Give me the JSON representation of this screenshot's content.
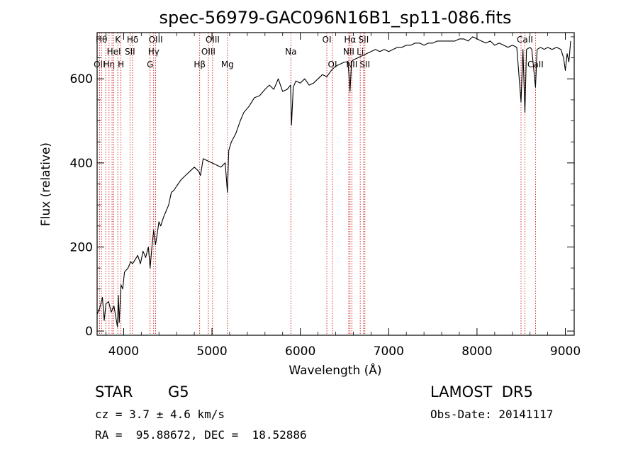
{
  "chart_data": {
    "type": "line",
    "title": "spec-56979-GAC096N16B1_sp11-086.fits",
    "xlabel": "Wavelength (Å)",
    "ylabel": "Flux (relative)",
    "xlim": [
      3700,
      9100
    ],
    "ylim": [
      -10,
      710
    ],
    "xticks": [
      4000,
      5000,
      6000,
      7000,
      8000,
      9000
    ],
    "yticks": [
      0,
      200,
      400,
      600
    ],
    "grid": false,
    "series": [
      {
        "x": [
          3700,
          3730,
          3760,
          3780,
          3800,
          3830,
          3860,
          3890,
          3910,
          3930,
          3940,
          3950,
          3970,
          3990,
          4010,
          4050,
          4080,
          4100,
          4130,
          4160,
          4190,
          4220,
          4250,
          4280,
          4300,
          4320,
          4340,
          4360,
          4380,
          4400,
          4420,
          4450,
          4480,
          4510,
          4540,
          4570,
          4600,
          4650,
          4700,
          4750,
          4800,
          4850,
          4870,
          4900,
          4950,
          5000,
          5050,
          5100,
          5150,
          5175,
          5190,
          5220,
          5270,
          5320,
          5360,
          5420,
          5480,
          5540,
          5600,
          5650,
          5700,
          5750,
          5800,
          5850,
          5890,
          5900,
          5920,
          5950,
          6000,
          6050,
          6100,
          6150,
          6200,
          6250,
          6300,
          6350,
          6400,
          6450,
          6500,
          6540,
          6563,
          6580,
          6600,
          6650,
          6700,
          6750,
          6800,
          6850,
          6900,
          6950,
          7000,
          7050,
          7100,
          7150,
          7200,
          7250,
          7300,
          7350,
          7400,
          7450,
          7500,
          7550,
          7600,
          7650,
          7700,
          7750,
          7800,
          7850,
          7900,
          7950,
          8000,
          8050,
          8100,
          8150,
          8200,
          8250,
          8300,
          8350,
          8400,
          8450,
          8498,
          8520,
          8542,
          8560,
          8600,
          8620,
          8662,
          8680,
          8720,
          8760,
          8800,
          8850,
          8900,
          8950,
          8980,
          9000,
          9020,
          9040,
          9060
        ],
        "y": [
          40,
          55,
          80,
          25,
          65,
          70,
          45,
          60,
          35,
          10,
          85,
          20,
          110,
          100,
          140,
          150,
          165,
          160,
          170,
          180,
          160,
          190,
          175,
          200,
          150,
          200,
          240,
          205,
          230,
          260,
          250,
          270,
          285,
          300,
          330,
          335,
          345,
          360,
          370,
          380,
          390,
          380,
          370,
          410,
          405,
          400,
          395,
          390,
          400,
          330,
          430,
          450,
          470,
          500,
          520,
          535,
          555,
          560,
          575,
          585,
          575,
          600,
          570,
          575,
          585,
          490,
          580,
          595,
          590,
          600,
          585,
          590,
          600,
          610,
          605,
          620,
          630,
          635,
          640,
          640,
          570,
          640,
          645,
          650,
          655,
          660,
          665,
          670,
          665,
          670,
          665,
          670,
          675,
          675,
          680,
          680,
          685,
          685,
          680,
          685,
          685,
          690,
          690,
          690,
          690,
          690,
          695,
          695,
          690,
          700,
          695,
          690,
          685,
          690,
          680,
          685,
          680,
          675,
          680,
          675,
          545,
          670,
          520,
          670,
          675,
          670,
          580,
          670,
          675,
          670,
          675,
          670,
          675,
          670,
          650,
          620,
          660,
          640,
          690
        ]
      }
    ],
    "lines": [
      {
        "wl": 3727,
        "label": "OII",
        "row": 2
      },
      {
        "wl": 3750,
        "label": "Hθ",
        "row": 0
      },
      {
        "wl": 3798,
        "label": "",
        "row": 0
      },
      {
        "wl": 3835,
        "label": "Hη",
        "row": 2
      },
      {
        "wl": 3869,
        "label": "",
        "row": 0
      },
      {
        "wl": 3889,
        "label": "HeI",
        "row": 1
      },
      {
        "wl": 3934,
        "label": "K",
        "row": 0
      },
      {
        "wl": 3970,
        "label": "H",
        "row": 2
      },
      {
        "wl": 4072,
        "label": "SII",
        "row": 1
      },
      {
        "wl": 4102,
        "label": "Hδ",
        "row": 0
      },
      {
        "wl": 4300,
        "label": "G",
        "row": 2
      },
      {
        "wl": 4340,
        "label": "Hγ",
        "row": 1
      },
      {
        "wl": 4363,
        "label": "OIII",
        "row": 0
      },
      {
        "wl": 4861,
        "label": "Hβ",
        "row": 2
      },
      {
        "wl": 4959,
        "label": "OIII",
        "row": 1
      },
      {
        "wl": 5007,
        "label": "OIII",
        "row": 0
      },
      {
        "wl": 5175,
        "label": "Mg",
        "row": 2
      },
      {
        "wl": 5893,
        "label": "Na",
        "row": 1
      },
      {
        "wl": 6300,
        "label": "OI",
        "row": 0
      },
      {
        "wl": 6364,
        "label": "OI",
        "row": 2
      },
      {
        "wl": 6548,
        "label": "NII",
        "row": 1
      },
      {
        "wl": 6563,
        "label": "Hα",
        "row": 0
      },
      {
        "wl": 6583,
        "label": "NII",
        "row": 2
      },
      {
        "wl": 6678,
        "label": "Li",
        "row": 1
      },
      {
        "wl": 6716,
        "label": "SII",
        "row": 0
      },
      {
        "wl": 6731,
        "label": "SII",
        "row": 2
      },
      {
        "wl": 8498,
        "label": "",
        "row": 0
      },
      {
        "wl": 8542,
        "label": "CaII",
        "row": 0
      },
      {
        "wl": 8662,
        "label": "CaII",
        "row": 2
      }
    ]
  },
  "info": {
    "class": "STAR",
    "subclass": "G5",
    "survey": "LAMOST  DR5",
    "cz": "cz = 3.7 ± 4.6 km/s",
    "obsdate": "Obs-Date: 20141117",
    "radec": "RA =  95.88672, DEC =  18.52886"
  },
  "colors": {
    "line_marker": "#cc0000",
    "spectrum": "#000000",
    "axes": "#000000"
  }
}
